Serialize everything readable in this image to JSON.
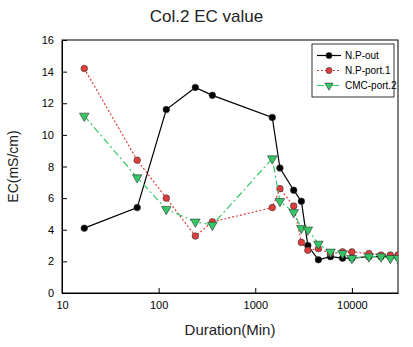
{
  "chart_data": {
    "type": "line",
    "title": "Col.2 EC value",
    "x_label": "Duration(Min)",
    "y_label": "EC(mS/cm)",
    "log": "x",
    "legend": "upper right",
    "xlim": [
      10,
      30000
    ],
    "xticks": [
      10,
      100,
      1000,
      10000
    ],
    "ylim": [
      0,
      16
    ],
    "yticks": [
      0,
      2,
      4,
      6,
      8,
      10,
      12,
      14,
      16
    ],
    "x": [
      17,
      60,
      120,
      240,
      360,
      1500,
      1800,
      2500,
      3000,
      3500,
      4500,
      6000,
      8000,
      10000,
      15000,
      20000,
      25000,
      30000
    ],
    "series": [
      {
        "name": "N.P-out",
        "color": "#000000",
        "marker": "circle",
        "line_style": "solid",
        "values": [
          4.1,
          5.4,
          11.6,
          13.0,
          12.5,
          11.1,
          7.9,
          6.5,
          5.8,
          3.0,
          2.1,
          2.3,
          2.2,
          2.2,
          2.3,
          2.3,
          2.3,
          2.3
        ]
      },
      {
        "name": "N.P-port.1",
        "color": "#e03c3c",
        "marker": "circle",
        "line_style": "dotted",
        "values": [
          14.2,
          8.4,
          6.0,
          3.6,
          4.5,
          5.4,
          6.6,
          5.5,
          3.2,
          2.7,
          2.8,
          2.5,
          2.6,
          2.6,
          2.5,
          2.4,
          2.4,
          2.4
        ]
      },
      {
        "name": "CMC-port.2",
        "color": "#33c766",
        "marker": "triangle-down",
        "line_style": "dashdot",
        "values": [
          11.2,
          7.3,
          5.3,
          4.5,
          4.3,
          8.5,
          5.8,
          5.1,
          4.1,
          4.0,
          3.1,
          2.6,
          2.5,
          2.2,
          2.3,
          2.3,
          2.2,
          2.2
        ]
      }
    ]
  }
}
